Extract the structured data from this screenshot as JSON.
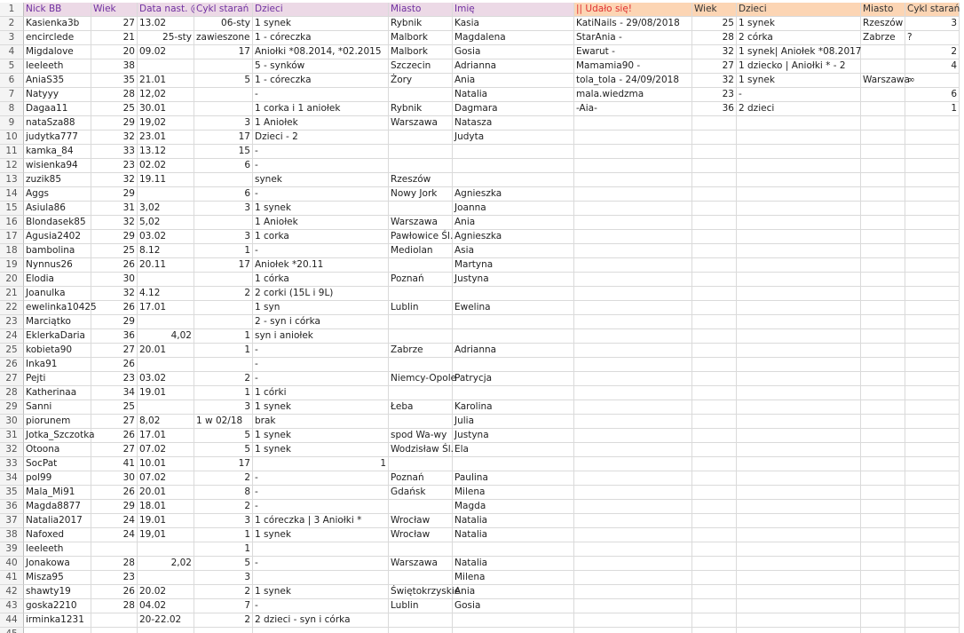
{
  "sheet": {
    "row_numbers": [
      1,
      2,
      3,
      4,
      5,
      6,
      7,
      8,
      9,
      10,
      11,
      12,
      13,
      14,
      15,
      16,
      17,
      18,
      19,
      20,
      21,
      22,
      23,
      24,
      25,
      26,
      27,
      28,
      29,
      30,
      31,
      32,
      33,
      34,
      35,
      36,
      37,
      38,
      39,
      40,
      41,
      42,
      43,
      44,
      45
    ],
    "rows": [
      [
        "Nick BB",
        "Wiek",
        "Data nast. @",
        "Cykl starań",
        "Dzieci",
        "Miasto",
        "Imię",
        "|| Udało się!",
        "Wiek",
        "Dzieci",
        "Miasto",
        "Cykl starań"
      ],
      [
        "Kasienka3b",
        27,
        "13.02",
        "06-sty",
        "1 synek",
        "Rybnik",
        "Kasia",
        "KatiNails - 29/08/2018",
        25,
        "1 synek",
        "Rzeszów",
        3
      ],
      [
        "encirclede",
        21,
        "25-sty",
        "zawieszone",
        "1 - córeczka",
        "Malbork",
        "Magdalena",
        "StarAnia -",
        28,
        "2 córka",
        "Zabrze",
        "?"
      ],
      [
        "Migdalove",
        20,
        "09.02",
        17,
        "Aniołki *08.2014, *02.2015",
        "Malbork",
        "Gosia",
        "Ewarut -",
        32,
        "1 synek| Aniołek *08.2017",
        null,
        2
      ],
      [
        "leeleeth",
        38,
        null,
        null,
        "5 - synków",
        "Szczecin",
        "Adrianna",
        "Mamamia90 -",
        27,
        "1 dziecko | Aniołki * - 2",
        null,
        4
      ],
      [
        "AniaS35",
        35,
        "21.01",
        5,
        "1 - córeczka",
        "Żory",
        "Ania",
        "tola_tola - 24/09/2018",
        32,
        "1 synek",
        "Warszawa",
        "∞"
      ],
      [
        "Natyyy",
        28,
        "12,02",
        null,
        "-",
        null,
        "Natalia",
        "mala.wiedzma",
        23,
        "-",
        null,
        6
      ],
      [
        "Dagaa11",
        25,
        "30.01",
        null,
        "1 corka i 1 aniołek",
        "Rybnik",
        "Dagmara",
        "-Aia-",
        36,
        "2 dzieci",
        null,
        1
      ],
      [
        "nataSza88",
        29,
        "19,02",
        3,
        "1 Aniołek",
        "Warszawa",
        "Natasza",
        null,
        null,
        null,
        null,
        null
      ],
      [
        "judytka777",
        32,
        "23.01",
        17,
        "Dzieci - 2",
        null,
        "Judyta",
        null,
        null,
        null,
        null,
        null
      ],
      [
        "kamka_84",
        33,
        "13.12",
        15,
        "-",
        null,
        null,
        null,
        null,
        null,
        null,
        null
      ],
      [
        "wisienka94",
        23,
        "02.02",
        6,
        "-",
        null,
        null,
        null,
        null,
        null,
        null,
        null
      ],
      [
        "zuzik85",
        32,
        "19.11",
        null,
        "synek",
        "Rzeszów",
        null,
        null,
        null,
        null,
        null,
        null
      ],
      [
        "Aggs",
        29,
        null,
        6,
        "-",
        "Nowy Jork",
        "Agnieszka",
        null,
        null,
        null,
        null,
        null
      ],
      [
        "Asiula86",
        31,
        "3,02",
        3,
        "1 synek",
        null,
        "Joanna",
        null,
        null,
        null,
        null,
        null
      ],
      [
        "Blondasek85",
        32,
        "5,02",
        null,
        "1 Aniołek",
        "Warszawa",
        "Ania",
        null,
        null,
        null,
        null,
        null
      ],
      [
        "Agusia2402",
        29,
        "03.02",
        3,
        "1 corka",
        "Pawłowice Śl.",
        "Agnieszka",
        null,
        null,
        null,
        null,
        null
      ],
      [
        "bambolina",
        25,
        "8.12",
        1,
        "-",
        "Mediolan",
        "Asia",
        null,
        null,
        null,
        null,
        null
      ],
      [
        "Nynnus26",
        26,
        "20.11",
        17,
        "Aniołek *20.11",
        null,
        "Martyna",
        null,
        null,
        null,
        null,
        null
      ],
      [
        "Elodia",
        30,
        null,
        null,
        "1 córka",
        "Poznań",
        "Justyna",
        null,
        null,
        null,
        null,
        null
      ],
      [
        "Joanulka",
        32,
        "4.12",
        2,
        "2 corki (15L i 9L)",
        null,
        null,
        null,
        null,
        null,
        null,
        null
      ],
      [
        "ewelinka10425",
        26,
        "17.01",
        null,
        "1 syn",
        "Lublin",
        "Ewelina",
        null,
        null,
        null,
        null,
        null
      ],
      [
        "Marciątko",
        29,
        null,
        null,
        "2 - syn i córka",
        null,
        null,
        null,
        null,
        null,
        null,
        null
      ],
      [
        "EklerkaDaria",
        36,
        "4,02",
        1,
        "syn i aniołek",
        null,
        null,
        null,
        null,
        null,
        null,
        null
      ],
      [
        "kobieta90",
        27,
        "20.01",
        1,
        "-",
        "Zabrze",
        "Adrianna",
        null,
        null,
        null,
        null,
        null
      ],
      [
        "Inka91",
        26,
        null,
        null,
        "-",
        null,
        null,
        null,
        null,
        null,
        null,
        null
      ],
      [
        "Pejti",
        23,
        "03.02",
        2,
        "-",
        "Niemcy-Opole",
        "Patrycja",
        null,
        null,
        null,
        null,
        null
      ],
      [
        "Katherinaa",
        34,
        "19.01",
        1,
        "1 córki",
        null,
        null,
        null,
        null,
        null,
        null,
        null
      ],
      [
        "Sanni",
        25,
        null,
        3,
        "1 synek",
        "Łeba",
        "Karolina",
        null,
        null,
        null,
        null,
        null
      ],
      [
        "piorunem",
        27,
        "8,02",
        "1 w 02/18",
        "brak",
        null,
        "Julia",
        null,
        null,
        null,
        null,
        null
      ],
      [
        "Jotka_Szczotka",
        26,
        "17.01",
        5,
        "1 synek",
        "spod Wa-wy",
        "Justyna",
        null,
        null,
        null,
        null,
        null
      ],
      [
        "Otoona",
        27,
        "07.02",
        5,
        "1 synek",
        "Wodzisław Śl.",
        "Ela",
        null,
        null,
        null,
        null,
        null
      ],
      [
        "SocPat",
        41,
        "10.01",
        17,
        1,
        null,
        null,
        null,
        null,
        null,
        null,
        null
      ],
      [
        "pol99",
        30,
        "07.02",
        2,
        "-",
        "Poznań",
        "Paulina",
        null,
        null,
        null,
        null,
        null
      ],
      [
        "Mala_Mi91",
        26,
        "20.01",
        8,
        "-",
        "Gdańsk",
        "Milena",
        null,
        null,
        null,
        null,
        null
      ],
      [
        "Magda8877",
        29,
        "18.01",
        2,
        "-",
        null,
        "Magda",
        null,
        null,
        null,
        null,
        null
      ],
      [
        "Natalia2017",
        24,
        "19.01",
        3,
        "1 córeczka | 3 Aniołki *",
        "Wrocław",
        "Natalia",
        null,
        null,
        null,
        null,
        null
      ],
      [
        "Nafoxed",
        24,
        "19,01",
        1,
        "1 synek",
        "Wrocław",
        "Natalia",
        null,
        null,
        null,
        null,
        null
      ],
      [
        "leeleeth",
        null,
        null,
        1,
        null,
        null,
        null,
        null,
        null,
        null,
        null,
        null
      ],
      [
        "Jonakowa",
        28,
        "2,02",
        5,
        "-",
        "Warszawa",
        "Natalia",
        null,
        null,
        null,
        null,
        null
      ],
      [
        "Misza95",
        23,
        null,
        3,
        null,
        null,
        "Milena",
        null,
        null,
        null,
        null,
        null
      ],
      [
        "shawty19",
        26,
        "20.02",
        2,
        "1 synek",
        "Świętokrzyskie",
        "Ania",
        null,
        null,
        null,
        null,
        null
      ],
      [
        "goska2210",
        28,
        "04.02",
        7,
        "-",
        "Lublin",
        "Gosia",
        null,
        null,
        null,
        null,
        null
      ],
      [
        "irminka1231",
        null,
        "20-22.02",
        2,
        "2 dzieci - syn i córka",
        null,
        null,
        null,
        null,
        null,
        null,
        null
      ],
      [
        null,
        null,
        null,
        null,
        null,
        null,
        null,
        null,
        null,
        null,
        null,
        null
      ]
    ]
  }
}
